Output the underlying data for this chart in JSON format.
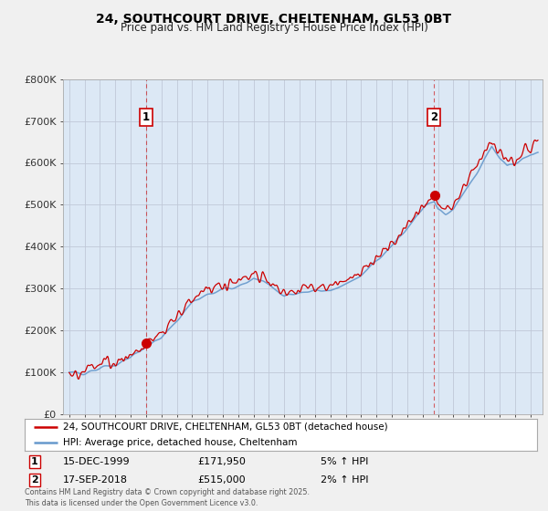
{
  "title": "24, SOUTHCOURT DRIVE, CHELTENHAM, GL53 0BT",
  "subtitle": "Price paid vs. HM Land Registry's House Price Index (HPI)",
  "legend_label_red": "24, SOUTHCOURT DRIVE, CHELTENHAM, GL53 0BT (detached house)",
  "legend_label_blue": "HPI: Average price, detached house, Cheltenham",
  "sale1_label": "1",
  "sale1_date": "15-DEC-1999",
  "sale1_price": "£171,950",
  "sale1_hpi": "5% ↑ HPI",
  "sale2_label": "2",
  "sale2_date": "17-SEP-2018",
  "sale2_price": "£515,000",
  "sale2_hpi": "2% ↑ HPI",
  "footnote": "Contains HM Land Registry data © Crown copyright and database right 2025.\nThis data is licensed under the Open Government Licence v3.0.",
  "ylim": [
    0,
    800000
  ],
  "yticks": [
    0,
    100000,
    200000,
    300000,
    400000,
    500000,
    600000,
    700000,
    800000
  ],
  "ytick_labels": [
    "£0",
    "£100K",
    "£200K",
    "£300K",
    "£400K",
    "£500K",
    "£600K",
    "£700K",
    "£800K"
  ],
  "x_start_year": 1995,
  "x_end_year": 2025,
  "sale1_year": 2000.0,
  "sale2_year": 2018.75,
  "sale1_price_val": 171950,
  "sale2_price_val": 515000,
  "bg_color": "#f0f0f0",
  "plot_bg_color": "#dce8f5",
  "red_color": "#cc0000",
  "blue_color": "#6699cc",
  "grid_color": "#c0c8d8",
  "title_color": "#000000"
}
